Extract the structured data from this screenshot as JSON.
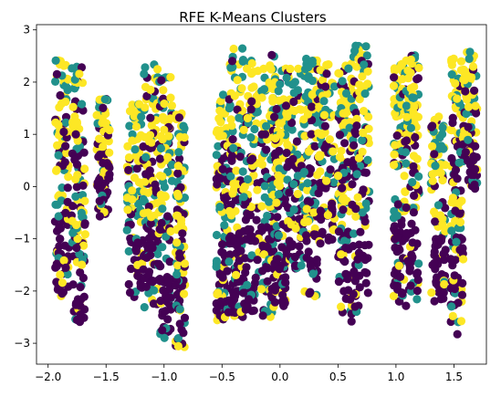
{
  "chart_data": {
    "type": "scatter",
    "title": "RFE K-Means Clusters",
    "xlabel": "",
    "ylabel": "",
    "xlim": [
      -2.1,
      1.78
    ],
    "ylim": [
      -3.4,
      3.1
    ],
    "xticks": [
      -2.0,
      -1.5,
      -1.0,
      -0.5,
      0.0,
      0.5,
      1.0,
      1.5
    ],
    "xtick_labels": [
      "−2.0",
      "−1.5",
      "−1.0",
      "−0.5",
      "0.0",
      "0.5",
      "1.0",
      "1.5"
    ],
    "yticks": [
      -3,
      -2,
      -1,
      0,
      1,
      2,
      3
    ],
    "ytick_labels": [
      "−3",
      "−2",
      "−1",
      "0",
      "1",
      "2",
      "3"
    ],
    "grid": false,
    "legend": "none",
    "colors": {
      "cluster_0": "#440154",
      "cluster_1": "#21918c",
      "cluster_2": "#fde725"
    },
    "columns": [
      {
        "x": [
          -1.94,
          -1.82
        ],
        "ylim": [
          -2.1,
          2.45
        ]
      },
      {
        "x": [
          -1.8,
          -1.68
        ],
        "ylim": [
          -2.6,
          2.3
        ]
      },
      {
        "x": [
          -1.58,
          -1.47
        ],
        "ylim": [
          -0.6,
          1.7
        ]
      },
      {
        "x": [
          -1.32,
          -1.18
        ],
        "ylim": [
          -2.2,
          1.6
        ]
      },
      {
        "x": [
          -1.18,
          -1.05
        ],
        "ylim": [
          -2.4,
          2.35
        ]
      },
      {
        "x": [
          -1.05,
          -0.93
        ],
        "ylim": [
          -2.9,
          2.1
        ]
      },
      {
        "x": [
          -0.9,
          -0.82
        ],
        "ylim": [
          -3.1,
          1.4
        ]
      },
      {
        "x": [
          -0.55,
          -0.44
        ],
        "ylim": [
          -2.65,
          1.8
        ]
      },
      {
        "x": [
          -0.44,
          -0.32
        ],
        "ylim": [
          -2.5,
          2.65
        ]
      },
      {
        "x": [
          -0.32,
          -0.18
        ],
        "ylim": [
          -2.4,
          2.45
        ]
      },
      {
        "x": [
          -0.16,
          -0.05
        ],
        "ylim": [
          -2.5,
          2.55
        ]
      },
      {
        "x": [
          -0.05,
          0.05
        ],
        "ylim": [
          -2.3,
          2.3
        ]
      },
      {
        "x": [
          0.05,
          0.2
        ],
        "ylim": [
          -1.6,
          2.3
        ]
      },
      {
        "x": [
          0.2,
          0.33
        ],
        "ylim": [
          -2.2,
          2.45
        ]
      },
      {
        "x": [
          0.33,
          0.47
        ],
        "ylim": [
          -1.1,
          2.35
        ]
      },
      {
        "x": [
          0.5,
          0.62
        ],
        "ylim": [
          -2.6,
          2.35
        ]
      },
      {
        "x": [
          0.62,
          0.77
        ],
        "ylim": [
          -2.4,
          2.8
        ]
      },
      {
        "x": [
          0.98,
          1.08
        ],
        "ylim": [
          -2.2,
          2.35
        ]
      },
      {
        "x": [
          1.08,
          1.2
        ],
        "ylim": [
          -2.3,
          2.55
        ]
      },
      {
        "x": [
          1.3,
          1.43
        ],
        "ylim": [
          -2.2,
          1.35
        ]
      },
      {
        "x": [
          1.47,
          1.58
        ],
        "ylim": [
          -2.85,
          2.6
        ]
      },
      {
        "x": [
          1.58,
          1.7
        ],
        "ylim": [
          -0.1,
          2.6
        ]
      }
    ]
  }
}
